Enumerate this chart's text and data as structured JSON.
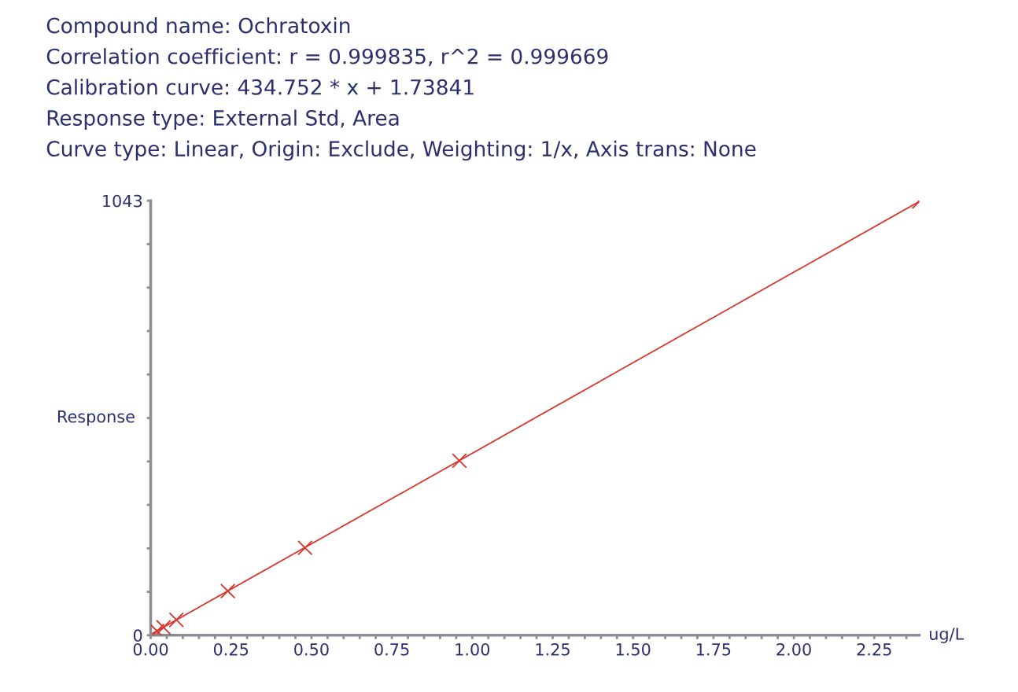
{
  "chart_data": {
    "type": "scatter",
    "annotations": [
      "Compound name: Ochratoxin",
      "Correlation coefficient: r = 0.999835, r^2 = 0.999669",
      "Calibration curve: 434.752 * x + 1.73841",
      "Response type: External Std, Area",
      "Curve type: Linear, Origin: Exclude, Weighting: 1/x, Axis trans: None"
    ],
    "xlabel": "ug/L",
    "ylabel": "Response",
    "marker": "cross",
    "grid": false,
    "x": [
      0.02,
      0.04,
      0.08,
      0.24,
      0.48,
      0.96,
      2.39
    ],
    "series": [
      {
        "color": "#d9342b",
        "values": [
          10,
          19,
          37,
          106,
          210,
          419,
          1041
        ]
      },
      {
        "type": "line",
        "color": "#d9342b",
        "marker": "none",
        "x": [
          0.0,
          2.39
        ],
        "values": [
          2,
          1041
        ]
      }
    ],
    "xlim": [
      0,
      2.39
    ],
    "ylim": [
      0,
      1043
    ],
    "xticks": [
      {
        "value": 0,
        "label": "0.00"
      },
      {
        "value": 0.05,
        "label": null
      },
      {
        "value": 0.1,
        "label": null
      },
      {
        "value": 0.15,
        "label": null
      },
      {
        "value": 0.2,
        "label": null
      },
      {
        "value": 0.25,
        "label": "0.25"
      },
      {
        "value": 0.3,
        "label": null
      },
      {
        "value": 0.35,
        "label": null
      },
      {
        "value": 0.4,
        "label": null
      },
      {
        "value": 0.45,
        "label": null
      },
      {
        "value": 0.5,
        "label": "0.50"
      },
      {
        "value": 0.55,
        "label": null
      },
      {
        "value": 0.6,
        "label": null
      },
      {
        "value": 0.65,
        "label": null
      },
      {
        "value": 0.7,
        "label": null
      },
      {
        "value": 0.75,
        "label": "0.75"
      },
      {
        "value": 0.8,
        "label": null
      },
      {
        "value": 0.85,
        "label": null
      },
      {
        "value": 0.9,
        "label": null
      },
      {
        "value": 0.95,
        "label": null
      },
      {
        "value": 1.0,
        "label": "1.00"
      },
      {
        "value": 1.05,
        "label": null
      },
      {
        "value": 1.1,
        "label": null
      },
      {
        "value": 1.15,
        "label": null
      },
      {
        "value": 1.2,
        "label": null
      },
      {
        "value": 1.25,
        "label": "1.25"
      },
      {
        "value": 1.3,
        "label": null
      },
      {
        "value": 1.35,
        "label": null
      },
      {
        "value": 1.4,
        "label": null
      },
      {
        "value": 1.45,
        "label": null
      },
      {
        "value": 1.5,
        "label": "1.50"
      },
      {
        "value": 1.55,
        "label": null
      },
      {
        "value": 1.6,
        "label": null
      },
      {
        "value": 1.65,
        "label": null
      },
      {
        "value": 1.7,
        "label": null
      },
      {
        "value": 1.75,
        "label": "1.75"
      },
      {
        "value": 1.8,
        "label": null
      },
      {
        "value": 1.85,
        "label": null
      },
      {
        "value": 1.9,
        "label": null
      },
      {
        "value": 1.95,
        "label": null
      },
      {
        "value": 2.0,
        "label": "2.00"
      },
      {
        "value": 2.05,
        "label": null
      },
      {
        "value": 2.1,
        "label": null
      },
      {
        "value": 2.15,
        "label": null
      },
      {
        "value": 2.2,
        "label": null
      },
      {
        "value": 2.25,
        "label": "2.25"
      },
      {
        "value": 2.3,
        "label": null
      },
      {
        "value": 2.35,
        "label": null
      }
    ],
    "yticks": [
      0,
      {
        "value": 104.3,
        "label": null
      },
      {
        "value": 208.6,
        "label": null
      },
      {
        "value": 312.9,
        "label": null
      },
      {
        "value": 417.2,
        "label": null
      },
      {
        "value": 521.5,
        "label": null
      },
      {
        "value": 625.8,
        "label": null
      },
      {
        "value": 730.1,
        "label": null
      },
      {
        "value": 834.4,
        "label": null
      },
      {
        "value": 938.7,
        "label": null
      },
      1043
    ]
  }
}
